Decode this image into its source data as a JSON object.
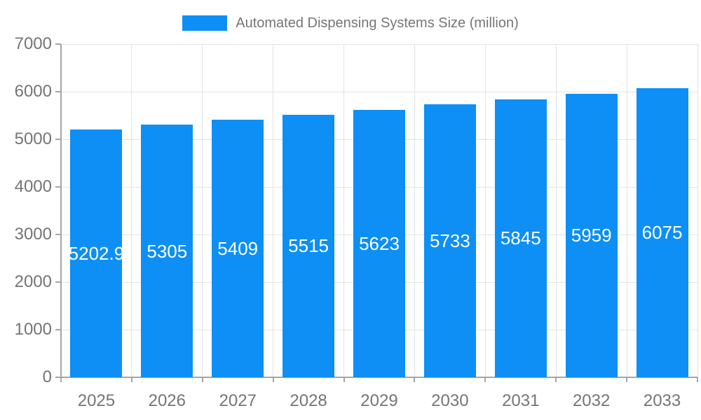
{
  "legend": {
    "label": "Automated Dispensing Systems Size (million)"
  },
  "colors": {
    "bar": "#0d8ff5",
    "axis_line": "#a6a6a6",
    "gridline": "#e3e3e3",
    "tick_text": "#757575",
    "value_label_text": "#ffffff",
    "background": "#ffffff"
  },
  "chart_data": {
    "type": "bar",
    "title": "Automated Dispensing Systems Size (million)",
    "categories": [
      "2025",
      "2026",
      "2027",
      "2028",
      "2029",
      "2030",
      "2031",
      "2032",
      "2033"
    ],
    "values": [
      5202.9,
      5305,
      5409,
      5515,
      5623,
      5733,
      5845,
      5959,
      6075
    ],
    "value_labels": [
      "5202.9",
      "5305",
      "5409",
      "5515",
      "5623",
      "5733",
      "5845",
      "5959",
      "6075"
    ],
    "xlabel": "",
    "ylabel": "",
    "ylim": [
      0,
      7000
    ],
    "yticks": [
      0,
      1000,
      2000,
      3000,
      4000,
      5000,
      6000,
      7000
    ],
    "grid": true,
    "legend_position": "top-center"
  }
}
